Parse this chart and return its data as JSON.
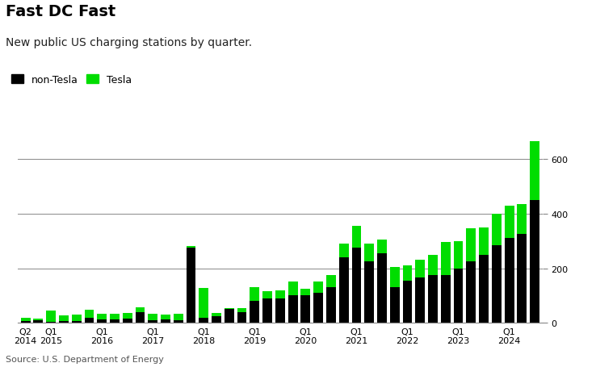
{
  "title": "Fast DC Fast",
  "subtitle": "New public US charging stations by quarter.",
  "source": "Source: U.S. Department of Energy",
  "legend_labels": [
    "non-Tesla",
    "Tesla"
  ],
  "bar_color_non_tesla": "#000000",
  "bar_color_tesla": "#00dd00",
  "background_color": "#ffffff",
  "x_tick_labels": [
    "Q2\n2014",
    "Q1\n2015",
    "Q1\n2016",
    "Q1\n2017",
    "Q1\n2018",
    "Q1\n2019",
    "Q1\n2020",
    "Q1\n2021",
    "Q1\n2022",
    "Q1\n2023",
    "Q1\n2024"
  ],
  "x_tick_positions": [
    0,
    2,
    6,
    10,
    14,
    18,
    22,
    26,
    30,
    34,
    38
  ],
  "non_tesla": [
    8,
    10,
    5,
    7,
    8,
    18,
    12,
    12,
    15,
    38,
    10,
    12,
    10,
    275,
    18,
    25,
    50,
    38,
    80,
    90,
    90,
    100,
    100,
    110,
    130,
    240,
    275,
    225,
    255,
    130,
    155,
    165,
    175,
    175,
    200,
    225,
    250,
    285,
    310,
    325,
    450
  ],
  "tesla": [
    12,
    5,
    40,
    20,
    22,
    30,
    20,
    22,
    22,
    20,
    22,
    18,
    22,
    5,
    110,
    10,
    5,
    15,
    50,
    25,
    30,
    50,
    25,
    40,
    45,
    50,
    80,
    65,
    50,
    75,
    55,
    65,
    75,
    120,
    100,
    120,
    100,
    115,
    120,
    110,
    215
  ],
  "ylim": [
    0,
    700
  ],
  "yticks": [
    0,
    200,
    400,
    600
  ],
  "title_fontsize": 14,
  "subtitle_fontsize": 10,
  "legend_fontsize": 9,
  "tick_fontsize": 8,
  "source_fontsize": 8
}
